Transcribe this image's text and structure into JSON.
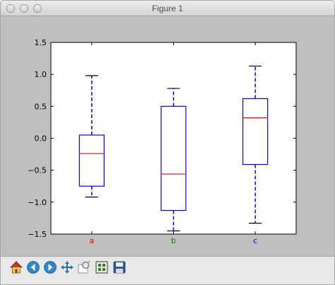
{
  "window": {
    "title": "Figure 1"
  },
  "toolbar": {
    "buttons": [
      {
        "name": "home",
        "icon": "home-icon"
      },
      {
        "name": "back",
        "icon": "back-arrow-icon"
      },
      {
        "name": "forward",
        "icon": "forward-arrow-icon"
      },
      {
        "name": "pan",
        "icon": "pan-move-icon"
      },
      {
        "name": "zoom",
        "icon": "zoom-rect-icon"
      },
      {
        "name": "subplots",
        "icon": "subplots-config-icon"
      },
      {
        "name": "save",
        "icon": "save-floppy-icon"
      }
    ]
  },
  "chart_data": {
    "type": "boxplot",
    "title": "",
    "xlabel": "",
    "ylabel": "",
    "ylim": [
      -1.5,
      1.5
    ],
    "yticks": [
      -1.5,
      -1.0,
      -0.5,
      0.0,
      0.5,
      1.0,
      1.5
    ],
    "ytick_labels": [
      "−1.5",
      "−1.0",
      "−0.5",
      "0.0",
      "0.5",
      "1.0",
      "1.5"
    ],
    "categories": [
      "a",
      "b",
      "c"
    ],
    "category_colors": [
      "#ff0000",
      "#008000",
      "#0000ff"
    ],
    "box_color": "#0000ff",
    "median_color": "#ff0000",
    "whisker_color": "#0000ff",
    "cap_color": "#000000",
    "boxes": [
      {
        "label": "a",
        "whisker_low": -0.92,
        "q1": -0.75,
        "median": -0.24,
        "q3": 0.05,
        "whisker_high": 0.98
      },
      {
        "label": "b",
        "whisker_low": -1.45,
        "q1": -1.13,
        "median": -0.56,
        "q3": 0.5,
        "whisker_high": 0.78
      },
      {
        "label": "c",
        "whisker_low": -1.33,
        "q1": -0.41,
        "median": 0.32,
        "q3": 0.62,
        "whisker_high": 1.13
      }
    ]
  }
}
